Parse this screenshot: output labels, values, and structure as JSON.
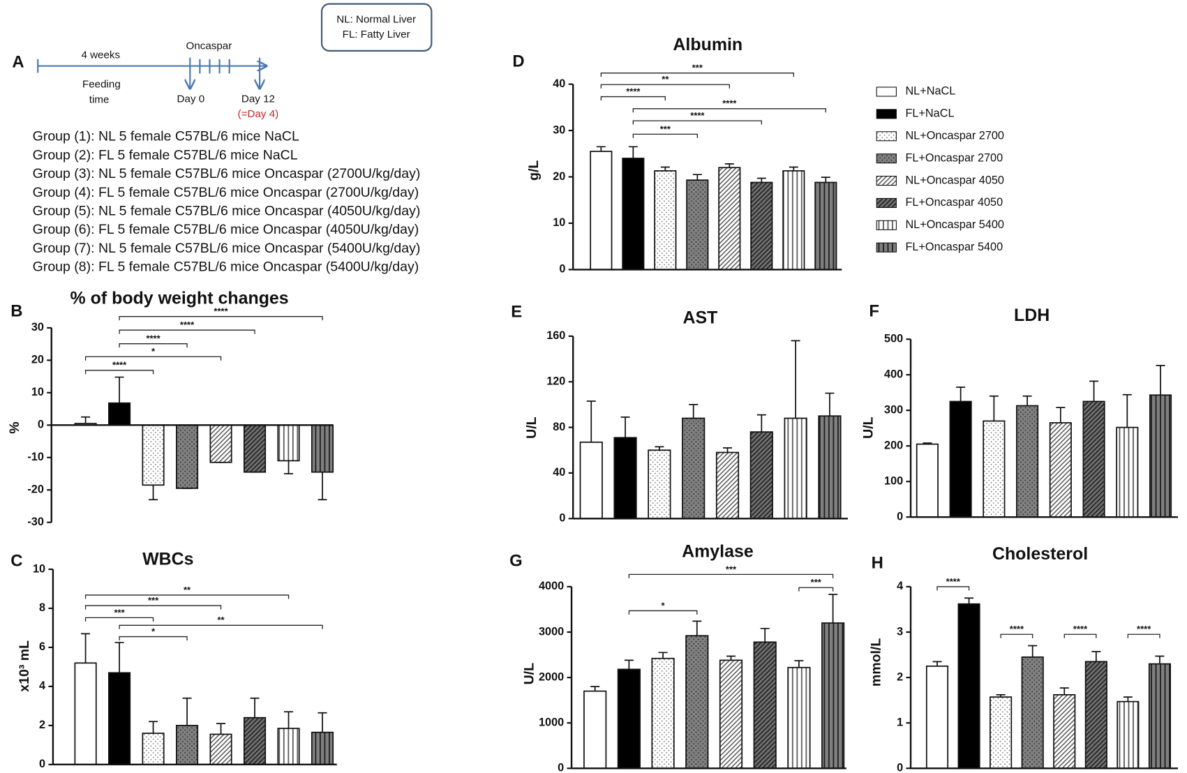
{
  "panel_a": {
    "letter": "A",
    "timeline": {
      "duration": "4 weeks",
      "phase_lines": [
        "Feeding",
        "time"
      ],
      "treatment": "Oncaspar",
      "start": "Day 0",
      "end": "Day 12",
      "end_note": "(=Day 4)"
    },
    "groups": [
      "Group (1): NL  5 female C57BL/6 mice NaCL",
      "Group (2): FL  5 female C57BL/6 mice NaCL",
      "Group (3): NL  5 female C57BL/6 mice Oncaspar (2700U/kg/day)",
      "Group (4): FL  5 female C57BL/6 mice Oncaspar (2700U/kg/day)",
      "Group (5): NL  5 female C57BL/6 mice Oncaspar (4050U/kg/day)",
      "Group (6): FL  5 female C57BL/6 mice Oncaspar (4050U/kg/day)",
      "Group (7): NL  5 female C57BL/6 mice Oncaspar (5400U/kg/day)",
      "Group (8): FL  5 female C57BL/6 mice Oncaspar (5400U/kg/day)"
    ]
  },
  "abbreviations": [
    "NL: Normal Liver",
    "FL: Fatty Liver"
  ],
  "legend": {
    "items": [
      {
        "name": "NL+NaCL",
        "fill": "#ffffff",
        "pattern": "none"
      },
      {
        "name": "FL+NaCL",
        "fill": "#000000",
        "pattern": "none"
      },
      {
        "name": "NL+Oncaspar 2700",
        "fill": "#ffffff",
        "pattern": "dots"
      },
      {
        "name": "FL+Oncaspar 2700",
        "fill": "#7f7f7f",
        "pattern": "dots"
      },
      {
        "name": "NL+Oncaspar 4050",
        "fill": "#ffffff",
        "pattern": "diag"
      },
      {
        "name": "FL+Oncaspar 4050",
        "fill": "#6f6f6f",
        "pattern": "diag"
      },
      {
        "name": "NL+Oncaspar 5400",
        "fill": "#ffffff",
        "pattern": "vert"
      },
      {
        "name": "FL+Oncaspar 5400",
        "fill": "#7f7f7f",
        "pattern": "vert"
      }
    ]
  },
  "chart_data": [
    {
      "type": "bar",
      "letter": "B",
      "title": "% of body weight changes",
      "ylabel": "%",
      "ylim": [
        -30,
        30
      ],
      "yticks": [
        -30,
        -20,
        -10,
        0,
        10,
        20,
        30
      ],
      "values": [
        0.5,
        6.8,
        -18.5,
        -19.5,
        -11.5,
        -14.5,
        -11,
        -14.5
      ],
      "errors": [
        2,
        8,
        4.5,
        0,
        0,
        0,
        4,
        8.5
      ],
      "brackets": [
        {
          "from": 1,
          "to": 7,
          "y": 33.5,
          "label": "****"
        },
        {
          "from": 1,
          "to": 5,
          "y": 29.3,
          "label": "****"
        },
        {
          "from": 1,
          "to": 3,
          "y": 25.1,
          "label": "****"
        },
        {
          "from": 0,
          "to": 4,
          "y": 21.1,
          "label": "*"
        },
        {
          "from": 0,
          "to": 2,
          "y": 16.9,
          "label": "****"
        }
      ]
    },
    {
      "type": "bar",
      "letter": "C",
      "title": "WBCs",
      "ylabel": "x10³ mL",
      "ylim": [
        0,
        10
      ],
      "yticks": [
        0,
        2,
        4,
        6,
        8,
        10
      ],
      "values": [
        5.2,
        4.7,
        1.6,
        2.0,
        1.55,
        2.4,
        1.85,
        1.65
      ],
      "errors": [
        1.5,
        1.55,
        0.6,
        1.4,
        0.55,
        1.0,
        0.85,
        1.0
      ],
      "brackets": [
        {
          "from": 0,
          "to": 6,
          "y": 8.68,
          "label": "**"
        },
        {
          "from": 0,
          "to": 4,
          "y": 8.14,
          "label": "***"
        },
        {
          "from": 0,
          "to": 2,
          "y": 7.52,
          "label": "***"
        },
        {
          "from": 1,
          "to": 7,
          "y": 7.13,
          "label": "**"
        },
        {
          "from": 1,
          "to": 3,
          "y": 6.55,
          "label": "*"
        }
      ]
    },
    {
      "type": "bar",
      "letter": "D",
      "title": "Albumin",
      "ylabel": "g/L",
      "ylim": [
        0,
        40
      ],
      "yticks": [
        0,
        10,
        20,
        30,
        40
      ],
      "values": [
        25.5,
        24,
        21.3,
        19.3,
        22,
        18.8,
        21.3,
        18.8
      ],
      "errors": [
        1,
        2.5,
        0.8,
        1.2,
        0.8,
        0.9,
        0.8,
        1.1
      ],
      "brackets": [
        {
          "from": 0,
          "to": 6,
          "y": 42.4,
          "label": "***"
        },
        {
          "from": 0,
          "to": 4,
          "y": 39.9,
          "label": "**"
        },
        {
          "from": 0,
          "to": 2,
          "y": 37.3,
          "label": "****"
        },
        {
          "from": 1,
          "to": 7,
          "y": 34.7,
          "label": "****"
        },
        {
          "from": 1,
          "to": 5,
          "y": 32.1,
          "label": "****"
        },
        {
          "from": 1,
          "to": 3,
          "y": 29.2,
          "label": "***"
        }
      ]
    },
    {
      "type": "bar",
      "letter": "E",
      "title": "AST",
      "ylabel": "U/L",
      "ylim": [
        0,
        160
      ],
      "yticks": [
        0,
        40,
        80,
        120,
        160
      ],
      "values": [
        67,
        71,
        60,
        88,
        58,
        76,
        88,
        90
      ],
      "errors": [
        36,
        18,
        3,
        12,
        4,
        15,
        68,
        20
      ],
      "brackets": []
    },
    {
      "type": "bar",
      "letter": "F",
      "title": "LDH",
      "ylabel": "U/L",
      "ylim": [
        0,
        500
      ],
      "yticks": [
        0,
        100,
        200,
        300,
        400,
        500
      ],
      "values": [
        205,
        325,
        270,
        313,
        265,
        325,
        252,
        343
      ],
      "errors": [
        3,
        40,
        70,
        27,
        43,
        57,
        92,
        83
      ],
      "brackets": []
    },
    {
      "type": "bar",
      "letter": "G",
      "title": "Amylase",
      "ylabel": "U/L",
      "ylim": [
        0,
        4000
      ],
      "yticks": [
        0,
        1000,
        2000,
        3000,
        4000
      ],
      "values": [
        1700,
        2180,
        2420,
        2920,
        2380,
        2780,
        2220,
        3200
      ],
      "errors": [
        100,
        200,
        130,
        320,
        90,
        300,
        150,
        630
      ],
      "brackets": [
        {
          "from": 1,
          "to": 7,
          "y": 4270,
          "label": "***"
        },
        {
          "from": 6,
          "to": 7,
          "y": 3980,
          "label": "***"
        },
        {
          "from": 1,
          "to": 3,
          "y": 3470,
          "label": "*"
        }
      ]
    },
    {
      "type": "bar",
      "letter": "H",
      "title": "Cholesterol",
      "ylabel": "mmol/L",
      "ylim": [
        0,
        4
      ],
      "yticks": [
        0,
        1,
        2,
        3,
        4
      ],
      "values": [
        2.25,
        3.62,
        1.57,
        2.45,
        1.62,
        2.35,
        1.47,
        2.3
      ],
      "errors": [
        0.1,
        0.13,
        0.05,
        0.25,
        0.15,
        0.22,
        0.1,
        0.17
      ],
      "brackets": [
        {
          "from": 0,
          "to": 1,
          "y": 4.0,
          "label": "****"
        },
        {
          "from": 2,
          "to": 3,
          "y": 2.95,
          "label": "****"
        },
        {
          "from": 4,
          "to": 5,
          "y": 2.95,
          "label": "****"
        },
        {
          "from": 6,
          "to": 7,
          "y": 2.95,
          "label": "****"
        }
      ]
    }
  ]
}
